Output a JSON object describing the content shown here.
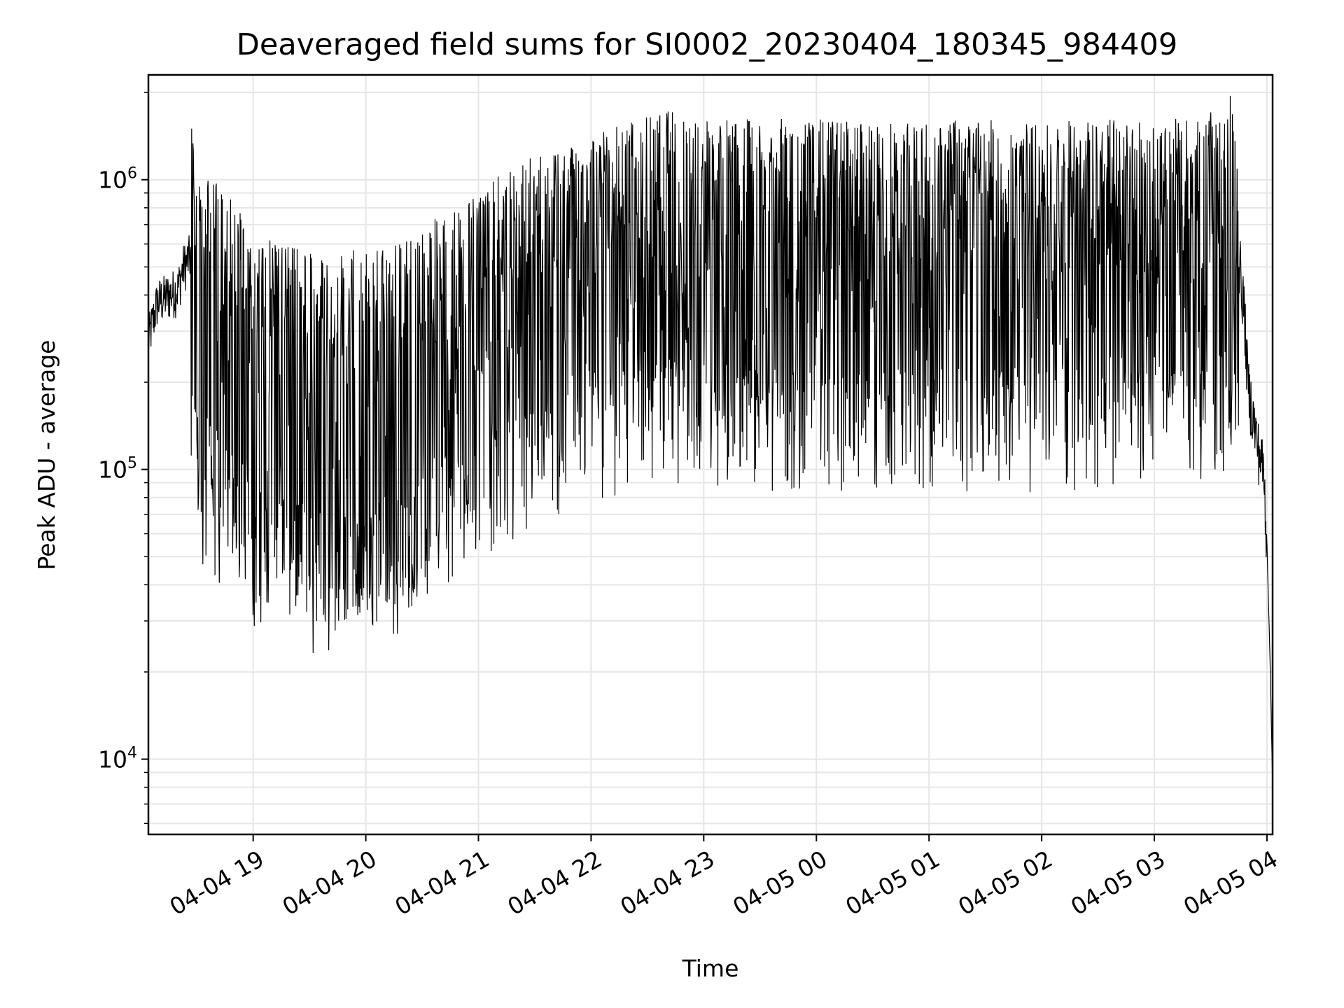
{
  "chart_data": {
    "type": "line",
    "title": "Deaveraged field sums for SI0002_20230404_180345_984409",
    "xlabel": "Time",
    "ylabel": "Peak ADU - average",
    "yscale": "log",
    "ylim": [
      5500,
      2300000
    ],
    "xlim_hours": [
      18.07,
      28.05
    ],
    "grid": true,
    "legend": "none",
    "line_color": "#000000",
    "grid_color": "#e6e6e6",
    "x_ticks": [
      {
        "label": "04-04 19",
        "hour": 19
      },
      {
        "label": "04-04 20",
        "hour": 20
      },
      {
        "label": "04-04 21",
        "hour": 21
      },
      {
        "label": "04-04 22",
        "hour": 22
      },
      {
        "label": "04-04 23",
        "hour": 23
      },
      {
        "label": "04-05 00",
        "hour": 24
      },
      {
        "label": "04-05 01",
        "hour": 25
      },
      {
        "label": "04-05 02",
        "hour": 26
      },
      {
        "label": "04-05 03",
        "hour": 27
      },
      {
        "label": "04-05 04",
        "hour": 28
      }
    ],
    "y_ticks": [
      {
        "base": "10",
        "exp": "4",
        "value": 10000
      },
      {
        "base": "10",
        "exp": "5",
        "value": 100000
      },
      {
        "base": "10",
        "exp": "6",
        "value": 1000000
      }
    ],
    "series": [
      {
        "name": "",
        "points": [
          [
            18.07,
            280000
          ],
          [
            18.15,
            380000
          ],
          [
            18.25,
            400000
          ],
          [
            18.33,
            420000
          ],
          [
            18.38,
            500000
          ],
          [
            18.45,
            550000
          ],
          [
            18.5,
            400000
          ],
          [
            18.6,
            380000
          ],
          [
            18.7,
            330000
          ],
          [
            18.85,
            280000
          ],
          [
            19.0,
            220000
          ],
          [
            19.2,
            220000
          ],
          [
            19.4,
            200000
          ],
          [
            19.6,
            190000
          ],
          [
            19.8,
            195000
          ],
          [
            20.0,
            200000
          ],
          [
            20.3,
            210000
          ],
          [
            20.6,
            250000
          ],
          [
            20.9,
            300000
          ],
          [
            21.2,
            360000
          ],
          [
            21.5,
            420000
          ],
          [
            21.8,
            470000
          ],
          [
            22.1,
            520000
          ],
          [
            22.4,
            560000
          ],
          [
            22.7,
            600000
          ],
          [
            23.0,
            580000
          ],
          [
            23.3,
            560000
          ],
          [
            23.6,
            560000
          ],
          [
            23.9,
            560000
          ],
          [
            24.2,
            560000
          ],
          [
            24.5,
            550000
          ],
          [
            24.8,
            540000
          ],
          [
            25.1,
            560000
          ],
          [
            25.4,
            560000
          ],
          [
            25.7,
            550000
          ],
          [
            26.0,
            540000
          ],
          [
            26.3,
            560000
          ],
          [
            26.6,
            560000
          ],
          [
            26.9,
            560000
          ],
          [
            27.2,
            560000
          ],
          [
            27.45,
            560000
          ],
          [
            27.6,
            650000
          ],
          [
            27.7,
            680000
          ],
          [
            27.75,
            550000
          ],
          [
            27.8,
            350000
          ],
          [
            27.83,
            200000
          ],
          [
            27.88,
            150000
          ],
          [
            27.92,
            120000
          ],
          [
            27.97,
            100000
          ],
          [
            28.0,
            55000
          ],
          [
            28.03,
            20000
          ],
          [
            28.05,
            8000
          ]
        ]
      }
    ]
  }
}
